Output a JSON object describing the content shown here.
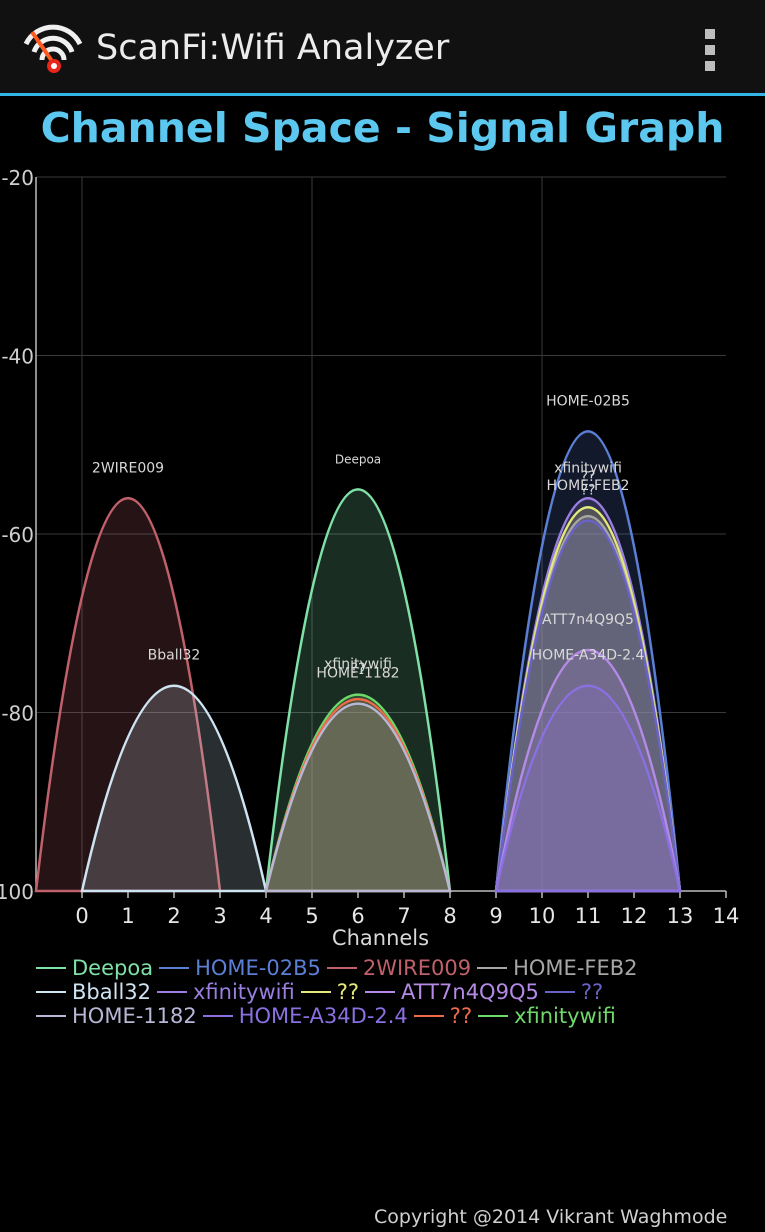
{
  "app": {
    "title": "ScanFi:Wifi Analyzer",
    "icon": "wifi-scan-icon",
    "menu_icon": "overflow-menu-icon"
  },
  "graph_title": "Channel Space - Signal Graph",
  "footer": {
    "copyright": "Copyright @2014 Vikrant Waghmode"
  },
  "legend": [
    {
      "name": "Deepoa",
      "color": "#7fe0a8"
    },
    {
      "name": "HOME-02B5",
      "color": "#5c7fd6"
    },
    {
      "name": "2WIRE009",
      "color": "#c0606b"
    },
    {
      "name": "HOME-FEB2",
      "color": "#a6a6a6"
    },
    {
      "name": "Bball32",
      "color": "#cfe4f2"
    },
    {
      "name": "xfinitywifi",
      "color": "#9a7fe0"
    },
    {
      "name": "??",
      "color": "#e4ea7a"
    },
    {
      "name": "ATT7n4Q9Q5",
      "color": "#b48ae6"
    },
    {
      "name": "??",
      "color": "#6a62c6"
    },
    {
      "name": "HOME-1182",
      "color": "#b7b7d6"
    },
    {
      "name": "HOME-A34D-2.4",
      "color": "#8a70e0"
    },
    {
      "name": "??",
      "color": "#ee6a4a"
    },
    {
      "name": "xfinitywifi",
      "color": "#6fd86a"
    }
  ],
  "chart_data": {
    "type": "area",
    "title": "Channel Space - Signal Graph",
    "xlabel": "Channels",
    "ylabel": "",
    "xlim": [
      -1,
      14
    ],
    "ylim": [
      -100,
      -20
    ],
    "x_ticks": [
      0,
      1,
      2,
      3,
      4,
      5,
      6,
      7,
      8,
      9,
      10,
      11,
      12,
      13,
      14
    ],
    "y_ticks": [
      -20,
      -40,
      -60,
      -80,
      -100
    ],
    "grid": true,
    "legend_position": "bottom",
    "series": [
      {
        "name": "2WIRE009",
        "channel": 1,
        "peak_dbm": -56,
        "color": "#c0606b",
        "label": "2WIRE009"
      },
      {
        "name": "Bball32",
        "channel": 2,
        "peak_dbm": -77,
        "color": "#cfe4f2",
        "label": "Bball32"
      },
      {
        "name": "Deepoa",
        "channel": 6,
        "peak_dbm": -55,
        "color": "#7fe0a8",
        "label": "Deepoa"
      },
      {
        "name": "xfinitywifi",
        "channel": 6,
        "peak_dbm": -78,
        "color": "#6fd86a",
        "label": "xfinitywifi"
      },
      {
        "name": "??",
        "channel": 6,
        "peak_dbm": -78.5,
        "color": "#ee6a4a",
        "label": "??"
      },
      {
        "name": "HOME-1182",
        "channel": 6,
        "peak_dbm": -79,
        "color": "#b7b7d6",
        "label": "HOME-1182"
      },
      {
        "name": "HOME-02B5",
        "channel": 11,
        "peak_dbm": -48.5,
        "color": "#5c7fd6",
        "label": "HOME-02B5"
      },
      {
        "name": "xfinitywifi",
        "channel": 11,
        "peak_dbm": -56,
        "color": "#9a7fe0",
        "label": "xfinitywifi"
      },
      {
        "name": "??",
        "channel": 11,
        "peak_dbm": -57,
        "color": "#e4ea7a",
        "label": "??"
      },
      {
        "name": "HOME-FEB2",
        "channel": 11,
        "peak_dbm": -58,
        "color": "#a6a6a6",
        "label": "HOME-FEB2"
      },
      {
        "name": "ATT7n4Q9Q5",
        "channel": 11,
        "peak_dbm": -73,
        "color": "#b48ae6",
        "label": "ATT7n4Q9Q5"
      },
      {
        "name": "HOME-A34D-2.4",
        "channel": 11,
        "peak_dbm": -77,
        "color": "#8a70e0",
        "label": "HOME-A34D-2.4"
      },
      {
        "name": "??",
        "channel": 11,
        "peak_dbm": -58.5,
        "color": "#6a62c6",
        "label": "??"
      }
    ]
  }
}
